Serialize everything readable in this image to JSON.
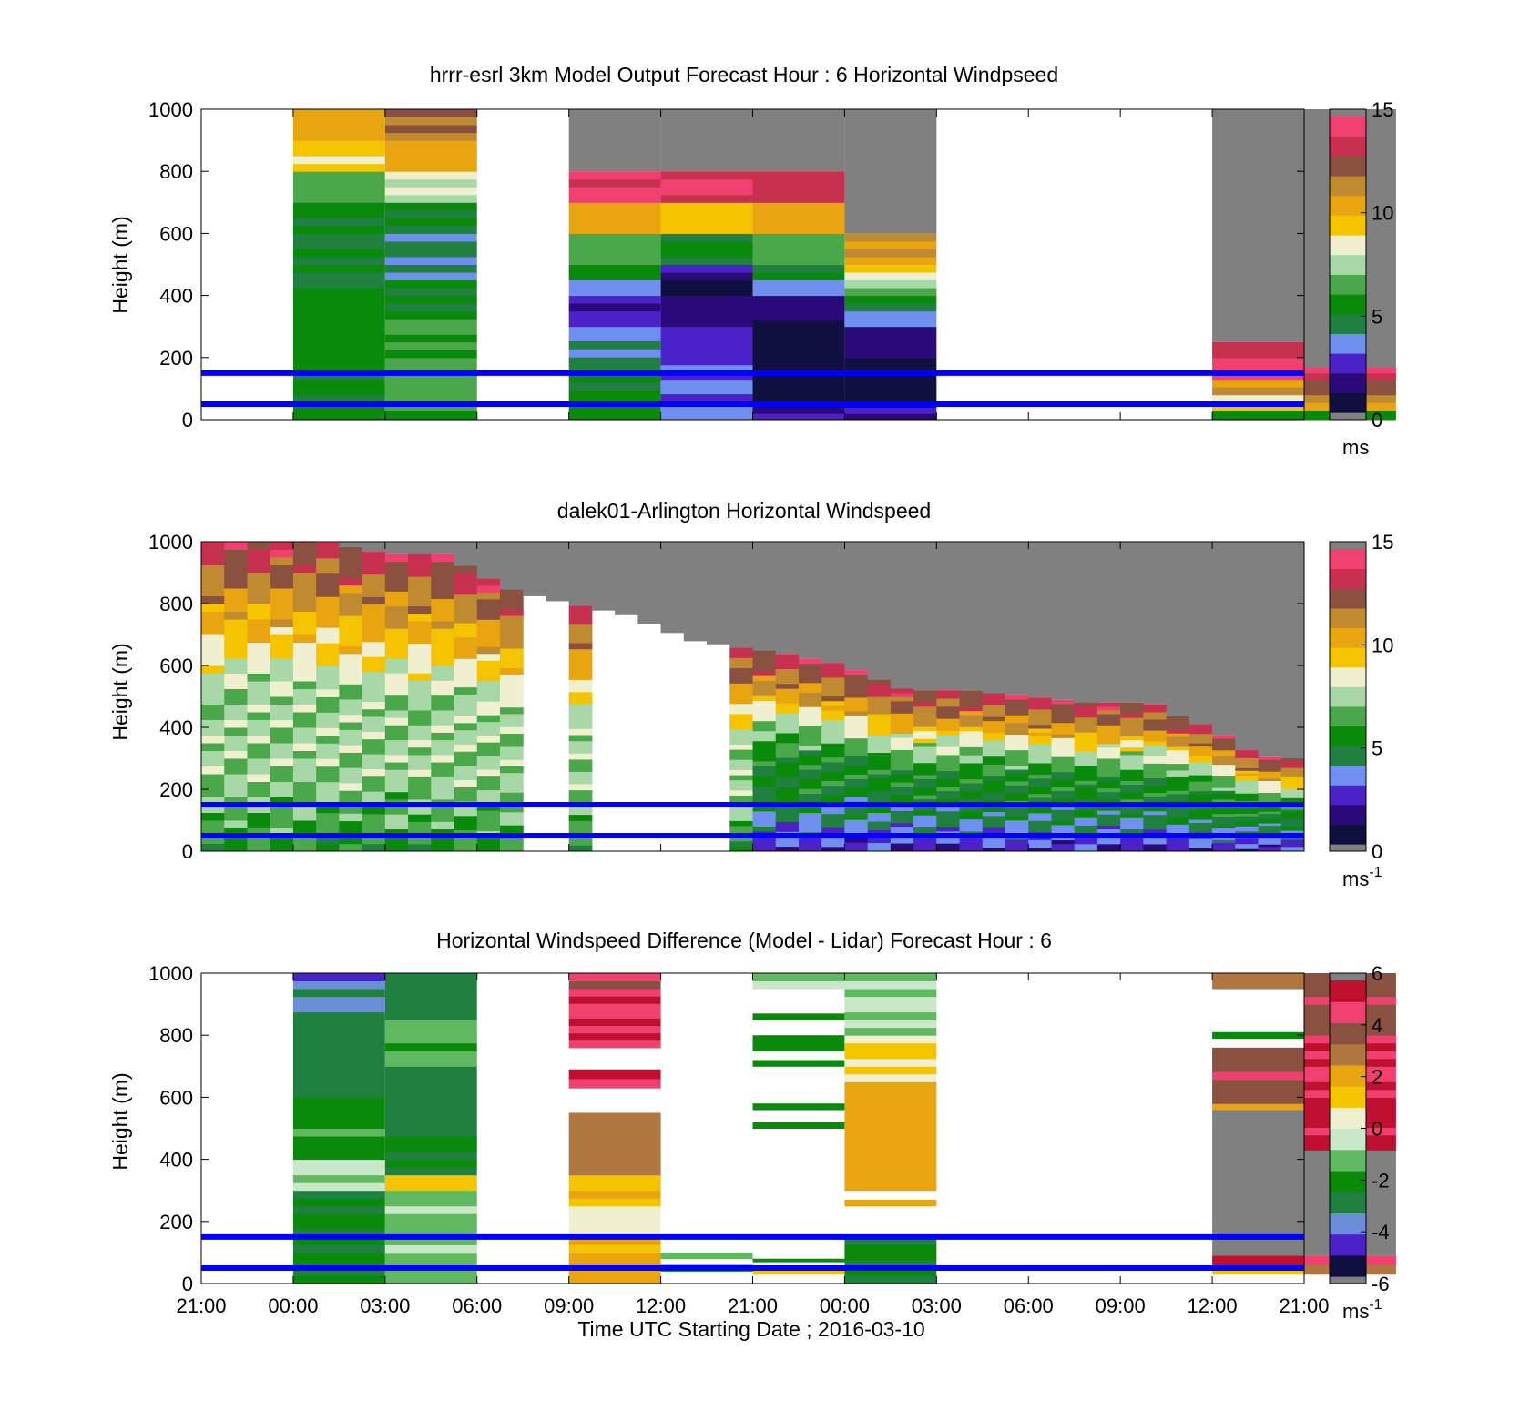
{
  "figure": {
    "x_tick_labels": [
      "21:00",
      "00:00",
      "03:00",
      "06:00",
      "09:00",
      "12:00",
      "21:00",
      "00:00",
      "03:00",
      "06:00",
      "09:00",
      "12:00",
      "21:00"
    ],
    "x_axis_label": "Time UTC  Starting Date ; 2016-03-10",
    "y_axis_label": "Height (m)",
    "y_tick_labels": [
      "0",
      "200",
      "400",
      "600",
      "800",
      "1000"
    ],
    "reference_line_heights_m": [
      50,
      150
    ],
    "reference_line_color": "#0000ff",
    "no_data_color": "#808080"
  },
  "colors": {
    "speed_scale": [
      "#101040",
      "#2a0a7a",
      "#4a22c8",
      "#7090f0",
      "#208040",
      "#0a8a0a",
      "#4aa84a",
      "#a8d8a8",
      "#f0f0d0",
      "#f5c400",
      "#e8a510",
      "#c08a30",
      "#8a5040",
      "#c83050",
      "#f04070"
    ],
    "diff_scale": [
      "#101040",
      "#4a22c8",
      "#6a8fd8",
      "#208040",
      "#0a8a0a",
      "#60b860",
      "#c8e8c8",
      "#f0f0d0",
      "#f5c400",
      "#e8a510",
      "#b07840",
      "#8a5040",
      "#f04070",
      "#c01030"
    ]
  },
  "chart_data": [
    {
      "type": "heatmap",
      "title": "hrrr-esrl 3km Model Output   Forecast Hour : 6 Horizontal Windpseed",
      "ylabel": "Height (m)",
      "ylim": [
        0,
        1000
      ],
      "colorbar": {
        "min": 0,
        "max": 15,
        "ticks": [
          "0",
          "5",
          "10",
          "15"
        ],
        "unit": "ms"
      },
      "columns": [
        {
          "bin": 1,
          "segments": [
            [
              0,
              30,
              5.5
            ],
            [
              30,
              180,
              5
            ],
            [
              180,
              400,
              5.5
            ],
            [
              400,
              600,
              4.8
            ],
            [
              600,
              700,
              5
            ],
            [
              700,
              800,
              6.5
            ],
            [
              800,
              900,
              9
            ],
            [
              900,
              1000,
              10.5
            ]
          ]
        },
        {
          "bin": 2,
          "segments": [
            [
              0,
              30,
              5.5
            ],
            [
              30,
              200,
              6.5
            ],
            [
              200,
              350,
              6
            ],
            [
              350,
              450,
              5
            ],
            [
              450,
              600,
              4.2
            ],
            [
              600,
              700,
              5.2
            ],
            [
              700,
              800,
              8
            ],
            [
              800,
              900,
              10.5
            ],
            [
              900,
              1000,
              12
            ]
          ]
        },
        {
          "bin": 4,
          "segments": [
            [
              0,
              40,
              5
            ],
            [
              40,
              150,
              5.2
            ],
            [
              150,
              280,
              4.2
            ],
            [
              280,
              300,
              3.5
            ],
            [
              300,
              400,
              2
            ],
            [
              400,
              450,
              3.2
            ],
            [
              450,
              500,
              5
            ],
            [
              500,
              600,
              6.5
            ],
            [
              600,
              700,
              10.5
            ],
            [
              700,
              800,
              14
            ]
          ]
        },
        {
          "bin": 5,
          "segments": [
            [
              0,
              60,
              3.5
            ],
            [
              60,
              200,
              3.2
            ],
            [
              200,
              300,
              2.5
            ],
            [
              300,
              400,
              1.5
            ],
            [
              400,
              450,
              0.5
            ],
            [
              450,
              500,
              2
            ],
            [
              500,
              600,
              5
            ],
            [
              600,
              700,
              9.5
            ],
            [
              700,
              800,
              14
            ]
          ]
        },
        {
          "bin": 6,
          "segments": [
            [
              0,
              40,
              2
            ],
            [
              40,
              80,
              0.5
            ],
            [
              80,
              200,
              0.2
            ],
            [
              200,
              320,
              0.4
            ],
            [
              320,
              400,
              1.5
            ],
            [
              400,
              450,
              3.5
            ],
            [
              450,
              500,
              5
            ],
            [
              500,
              600,
              6.5
            ],
            [
              600,
              700,
              10.5
            ],
            [
              700,
              800,
              13.5
            ]
          ]
        },
        {
          "bin": 7,
          "segments": [
            [
              0,
              40,
              2
            ],
            [
              40,
              200,
              0.4
            ],
            [
              200,
              300,
              1.5
            ],
            [
              300,
              350,
              3.5
            ],
            [
              350,
              400,
              5
            ],
            [
              400,
              450,
              7
            ],
            [
              450,
              500,
              9
            ],
            [
              500,
              600,
              11
            ]
          ]
        },
        {
          "bin": 11,
          "segments": [
            [
              0,
              30,
              5
            ],
            [
              30,
              80,
              9
            ],
            [
              80,
              130,
              11
            ],
            [
              130,
              200,
              14.5
            ],
            [
              200,
              250,
              13.5
            ]
          ]
        },
        {
          "bin": 12,
          "segments": [
            [
              0,
              30,
              6
            ],
            [
              30,
              80,
              11
            ],
            [
              80,
              130,
              12.5
            ],
            [
              130,
              170,
              14
            ]
          ]
        }
      ],
      "no_data_columns": [
        {
          "bin": 4,
          "from": 800,
          "to": 1000
        },
        {
          "bin": 5,
          "from": 800,
          "to": 1000
        },
        {
          "bin": 6,
          "from": 800,
          "to": 1000
        },
        {
          "bin": 6,
          "from": 20,
          "to": 80
        },
        {
          "bin": 7,
          "from": 600,
          "to": 1000
        },
        {
          "bin": 11,
          "from": 250,
          "to": 1000
        },
        {
          "bin": 12,
          "from": 170,
          "to": 1000
        }
      ]
    },
    {
      "type": "heatmap",
      "title": "dalek01-Arlington  Horizontal Windspeed",
      "ylabel": "Height (m)",
      "ylim": [
        0,
        1000
      ],
      "colorbar": {
        "min": 0,
        "max": 15,
        "ticks": [
          "0",
          "5",
          "10",
          "15"
        ],
        "unit": "ms",
        "unit_exponent": "-1"
      },
      "x_range_hours": [
        0,
        36
      ],
      "boundary_layer_top_m": [
        [
          0,
          1000
        ],
        [
          2,
          1000
        ],
        [
          4,
          1000
        ],
        [
          6,
          960
        ],
        [
          8,
          960
        ],
        [
          9,
          900
        ],
        [
          10,
          850
        ],
        [
          11,
          820
        ],
        [
          12,
          800
        ],
        [
          14,
          760
        ],
        [
          16,
          680
        ],
        [
          17.5,
          660
        ],
        [
          19,
          640
        ],
        [
          20,
          620
        ],
        [
          21,
          600
        ],
        [
          22,
          560
        ],
        [
          23,
          520
        ],
        [
          25,
          520
        ],
        [
          27,
          500
        ],
        [
          29,
          480
        ],
        [
          31,
          480
        ],
        [
          32,
          430
        ],
        [
          33,
          400
        ],
        [
          34,
          330
        ],
        [
          35,
          300
        ]
      ],
      "profiles": [
        {
          "h": 0,
          "v": 5.5
        },
        {
          "h": 0.1,
          "v": 6.5
        },
        {
          "h": 0.3,
          "v": 7.5
        },
        {
          "h": 0.5,
          "v": 7.2
        },
        {
          "h": 0.7,
          "v": 9.5
        },
        {
          "h": 0.85,
          "v": 11.5
        },
        {
          "h": 1.0,
          "v": 13.5
        }
      ],
      "data_gaps_hours": [
        [
          10.5,
          11.7
        ],
        [
          13,
          17.5
        ]
      ],
      "no_data_color": "#808080"
    },
    {
      "type": "heatmap",
      "title": "Horizontal Windspeed Difference (Model - Lidar) Forecast Hour : 6",
      "ylabel": "Height (m)",
      "xlabel": "Time UTC  Starting Date ; 2016-03-10",
      "ylim": [
        0,
        1000
      ],
      "colorbar": {
        "min": -6,
        "max": 6,
        "ticks": [
          "-6",
          "-4",
          "-2",
          "0",
          "2",
          "4",
          "6"
        ],
        "unit": "ms",
        "unit_exponent": "-1"
      },
      "columns": [
        {
          "bin": 1,
          "segments": [
            [
              0,
              300,
              -2.5
            ],
            [
              300,
              400,
              -0.5
            ],
            [
              400,
              600,
              -2
            ],
            [
              600,
              850,
              -3
            ],
            [
              850,
              950,
              -3.5
            ],
            [
              950,
              1000,
              -4
            ]
          ]
        },
        {
          "bin": 2,
          "segments": [
            [
              0,
              300,
              -1.2
            ],
            [
              300,
              350,
              1.5
            ],
            [
              350,
              500,
              -2.5
            ],
            [
              500,
              700,
              -3
            ],
            [
              700,
              850,
              -1.5
            ],
            [
              850,
              1000,
              -3
            ]
          ]
        },
        {
          "bin": 4,
          "segments": [
            [
              0,
              150,
              2
            ],
            [
              150,
              250,
              0.2
            ],
            [
              250,
              350,
              1.5
            ],
            [
              350,
              550,
              3
            ],
            [
              760,
              950,
              5
            ],
            [
              950,
              1000,
              4
            ],
            [
              630,
              690,
              5
            ]
          ]
        },
        {
          "bin": 5,
          "segments": [
            [
              40,
              60,
              -1.5
            ],
            [
              80,
              100,
              -1
            ]
          ]
        },
        {
          "bin": 6,
          "segments": [
            [
              30,
              50,
              1.5
            ],
            [
              70,
              80,
              -2
            ],
            [
              500,
              520,
              -2
            ],
            [
              560,
              580,
              -2
            ],
            [
              700,
              720,
              -2.5
            ],
            [
              750,
              800,
              -2
            ],
            [
              850,
              870,
              -2
            ],
            [
              950,
              1000,
              -1
            ]
          ]
        },
        {
          "bin": 7,
          "segments": [
            [
              0,
              150,
              -2.5
            ],
            [
              250,
              270,
              2
            ],
            [
              300,
              320,
              2
            ],
            [
              320,
              650,
              2.2
            ],
            [
              650,
              800,
              1
            ],
            [
              800,
              1000,
              -0.8
            ]
          ]
        },
        {
          "bin": 11,
          "segments": [
            [
              30,
              60,
              1.5
            ],
            [
              60,
              90,
              5.5
            ],
            [
              560,
              580,
              2
            ],
            [
              580,
              760,
              4
            ],
            [
              790,
              810,
              -2
            ],
            [
              950,
              1000,
              3
            ]
          ]
        },
        {
          "bin": 12,
          "segments": [
            [
              30,
              60,
              3
            ],
            [
              60,
              90,
              5
            ],
            [
              430,
              600,
              5.5
            ],
            [
              600,
              800,
              5
            ],
            [
              800,
              1000,
              4
            ]
          ]
        }
      ],
      "no_data_columns": [
        {
          "bin": 11,
          "from": 90,
          "to": 560
        },
        {
          "bin": 12,
          "from": 90,
          "to": 430
        }
      ]
    }
  ]
}
